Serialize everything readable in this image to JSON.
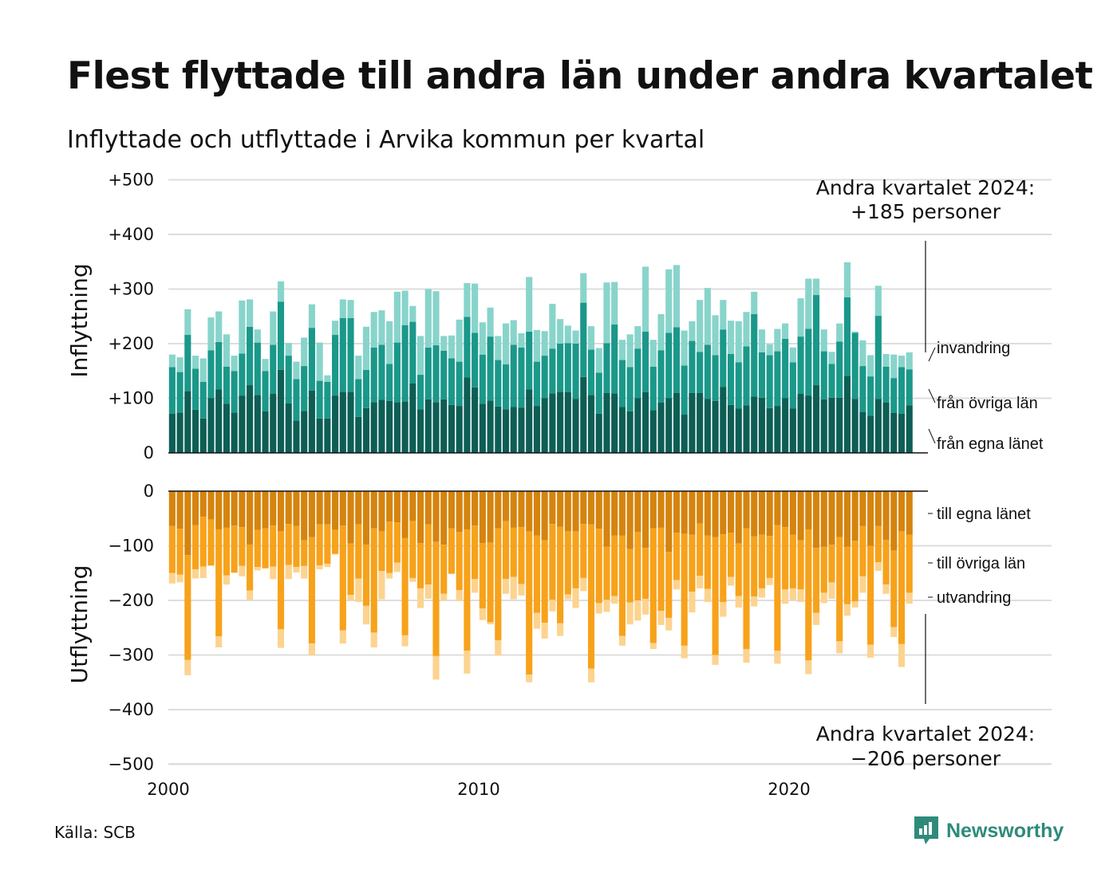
{
  "title": "Flest flyttade till andra län under andra kvartalet",
  "subtitle": "Inflyttade och utflyttade i Arvika kommun per kvartal",
  "source": "Källa: SCB",
  "brand": "Newsworthy",
  "colors": {
    "in_own": "#0d5e55",
    "in_other": "#1a988a",
    "in_immig": "#88d4cb",
    "out_own": "#d5840e",
    "out_other": "#f7a21b",
    "out_emig": "#fcd38f",
    "grid": "#dddddd",
    "brand": "#2e8b7a"
  },
  "chart_data": {
    "type": "bar",
    "stacked": true,
    "x_start": 2000,
    "x_ticks": [
      "2000",
      "2010",
      "2020"
    ],
    "panels": [
      {
        "ylabel": "Inflyttning",
        "ylim": [
          0,
          500
        ],
        "y_ticks": [
          "+500",
          "+400",
          "+300",
          "+200",
          "+100",
          "0"
        ],
        "series": [
          {
            "name": "från egna länet",
            "color_key": "in_own",
            "values": [
              72,
              74,
              113,
              79,
              63,
              100,
              116,
              90,
              74,
              105,
              124,
              106,
              76,
              108,
              152,
              91,
              59,
              77,
              114,
              63,
              63,
              105,
              112,
              112,
              66,
              82,
              93,
              97,
              95,
              93,
              94,
              127,
              80,
              98,
              93,
              98,
              88,
              86,
              138,
              120,
              90,
              96,
              85,
              80,
              84,
              83,
              116,
              86,
              100,
              109,
              112,
              111,
              99,
              139,
              106,
              72,
              110,
              109,
              84,
              76,
              100,
              111,
              78,
              92,
              100,
              110,
              70,
              110,
              110,
              99,
              95,
              121,
              88,
              81,
              87,
              103,
              101,
              82,
              86,
              100,
              81,
              108,
              105,
              124,
              98,
              101,
              101,
              141,
              99,
              75,
              68,
              99,
              92,
              73,
              72,
              87
            ]
          },
          {
            "name": "från övriga län",
            "color_key": "in_other",
            "values": [
              85,
              74,
              103,
              75,
              67,
              88,
              87,
              68,
              76,
              77,
              107,
              96,
              74,
              90,
              125,
              87,
              76,
              82,
              115,
              69,
              67,
              111,
              135,
              135,
              69,
              70,
              100,
              101,
              68,
              109,
              140,
              113,
              63,
              95,
              104,
              89,
              85,
              81,
              111,
              100,
              90,
              117,
              85,
              82,
              114,
              110,
              106,
              81,
              78,
              82,
              88,
              90,
              101,
              136,
              83,
              75,
              91,
              126,
              86,
              81,
              91,
              111,
              80,
              96,
              120,
              120,
              90,
              95,
              75,
              99,
              84,
              105,
              93,
              85,
              108,
              151,
              83,
              97,
              100,
              109,
              85,
              105,
              122,
              165,
              88,
              62,
              103,
              144,
              121,
              84,
              72,
              152,
              66,
              64,
              85,
              66
            ]
          },
          {
            "name": "invandring",
            "color_key": "in_immig",
            "values": [
              23,
              27,
              47,
              24,
              43,
              60,
              56,
              59,
              28,
              97,
              50,
              24,
              22,
              61,
              37,
              23,
              32,
              52,
              43,
              70,
              12,
              26,
              34,
              33,
              43,
              79,
              65,
              63,
              78,
              93,
              63,
              29,
              71,
              107,
              99,
              27,
              42,
              77,
              62,
              90,
              59,
              53,
              44,
              75,
              45,
              26,
              100,
              58,
              45,
              82,
              45,
              32,
              24,
              54,
              43,
              45,
              111,
              78,
              37,
              60,
              41,
              119,
              49,
              66,
              116,
              114,
              64,
              36,
              95,
              104,
              73,
              54,
              61,
              75,
              63,
              41,
              42,
              20,
              41,
              28,
              27,
              70,
              92,
              30,
              40,
              22,
              33,
              64,
              2,
              47,
              39,
              55,
              23,
              43,
              21,
              31
            ]
          }
        ]
      },
      {
        "ylabel": "Utflyttning",
        "ylim": [
          -500,
          0
        ],
        "y_ticks": [
          "0",
          "−100",
          "−200",
          "−300",
          "−400",
          "−500"
        ],
        "series": [
          {
            "name": "till egna länet",
            "color_key": "out_own",
            "values": [
              -64,
              -69,
              -117,
              -62,
              -47,
              -52,
              -70,
              -67,
              -63,
              -66,
              -98,
              -71,
              -68,
              -63,
              -73,
              -60,
              -64,
              -90,
              -84,
              -61,
              -61,
              -71,
              -63,
              -96,
              -61,
              -98,
              -68,
              -73,
              -56,
              -57,
              -86,
              -55,
              -95,
              -61,
              -93,
              -98,
              -68,
              -75,
              -70,
              -63,
              -95,
              -94,
              -68,
              -55,
              -67,
              -66,
              -74,
              -81,
              -90,
              -60,
              -65,
              -73,
              -74,
              -60,
              -61,
              -69,
              -102,
              -81,
              -81,
              -106,
              -75,
              -104,
              -68,
              -67,
              -111,
              -76,
              -78,
              -80,
              -59,
              -81,
              -84,
              -79,
              -76,
              -96,
              -68,
              -83,
              -80,
              -82,
              -62,
              -66,
              -80,
              -90,
              -70,
              -104,
              -102,
              -98,
              -84,
              -102,
              -91,
              -64,
              -100,
              -64,
              -89,
              -109,
              -73,
              -80
            ]
          },
          {
            "name": "till övriga län",
            "color_key": "out_other",
            "values": [
              -86,
              -84,
              -192,
              -81,
              -91,
              -84,
              -196,
              -87,
              -86,
              -71,
              -84,
              -68,
              -73,
              -75,
              -180,
              -75,
              -75,
              -47,
              -195,
              -75,
              -72,
              -44,
              -192,
              -94,
              -99,
              -112,
              -191,
              -73,
              -94,
              -74,
              -178,
              -104,
              -83,
              -110,
              -209,
              -90,
              -83,
              -106,
              -222,
              -98,
              -120,
              -146,
              -205,
              -106,
              -90,
              -104,
              -262,
              -142,
              -151,
              -139,
              -177,
              -116,
              -104,
              -99,
              -264,
              -136,
              -97,
              -111,
              -184,
              -98,
              -125,
              -93,
              -210,
              -152,
              -121,
              -87,
              -205,
              -104,
              -96,
              -98,
              -216,
              -124,
              -81,
              -96,
              -221,
              -110,
              -98,
              -77,
              -230,
              -114,
              -98,
              -90,
              -240,
              -119,
              -84,
              -69,
              -191,
              -105,
              -111,
              -92,
              -181,
              -66,
              -82,
              -140,
              -207,
              -106
            ]
          },
          {
            "name": "utvandring",
            "color_key": "out_emig",
            "values": [
              -19,
              -14,
              -28,
              -17,
              -21,
              -1,
              -20,
              -17,
              -1,
              -19,
              -17,
              -6,
              -1,
              -23,
              -34,
              -26,
              -10,
              -23,
              -22,
              -7,
              -6,
              -1,
              -24,
              -10,
              -43,
              -34,
              -27,
              -52,
              -10,
              -17,
              -20,
              -7,
              -36,
              -26,
              -43,
              -12,
              -1,
              -20,
              -42,
              -25,
              -21,
              -4,
              -28,
              -27,
              -41,
              -21,
              -14,
              -29,
              -29,
              -21,
              -23,
              -9,
              -36,
              -24,
              -25,
              -19,
              -22,
              -14,
              -18,
              -40,
              -37,
              -29,
              -11,
              -26,
              -23,
              -17,
              -23,
              -38,
              -23,
              -24,
              -18,
              -27,
              -16,
              -21,
              -25,
              -18,
              -17,
              -13,
              -24,
              -26,
              -21,
              -23,
              -25,
              -22,
              -19,
              -30,
              -22,
              -21,
              -11,
              -30,
              -24,
              -16,
              -17,
              -18,
              -42,
              -20
            ]
          }
        ]
      }
    ],
    "annotations": {
      "top_line1": "Andra kvartalet 2024:",
      "top_line2": "+185 personer",
      "bottom_line1": "Andra kvartalet 2024:",
      "bottom_line2": "−206 personer"
    }
  }
}
